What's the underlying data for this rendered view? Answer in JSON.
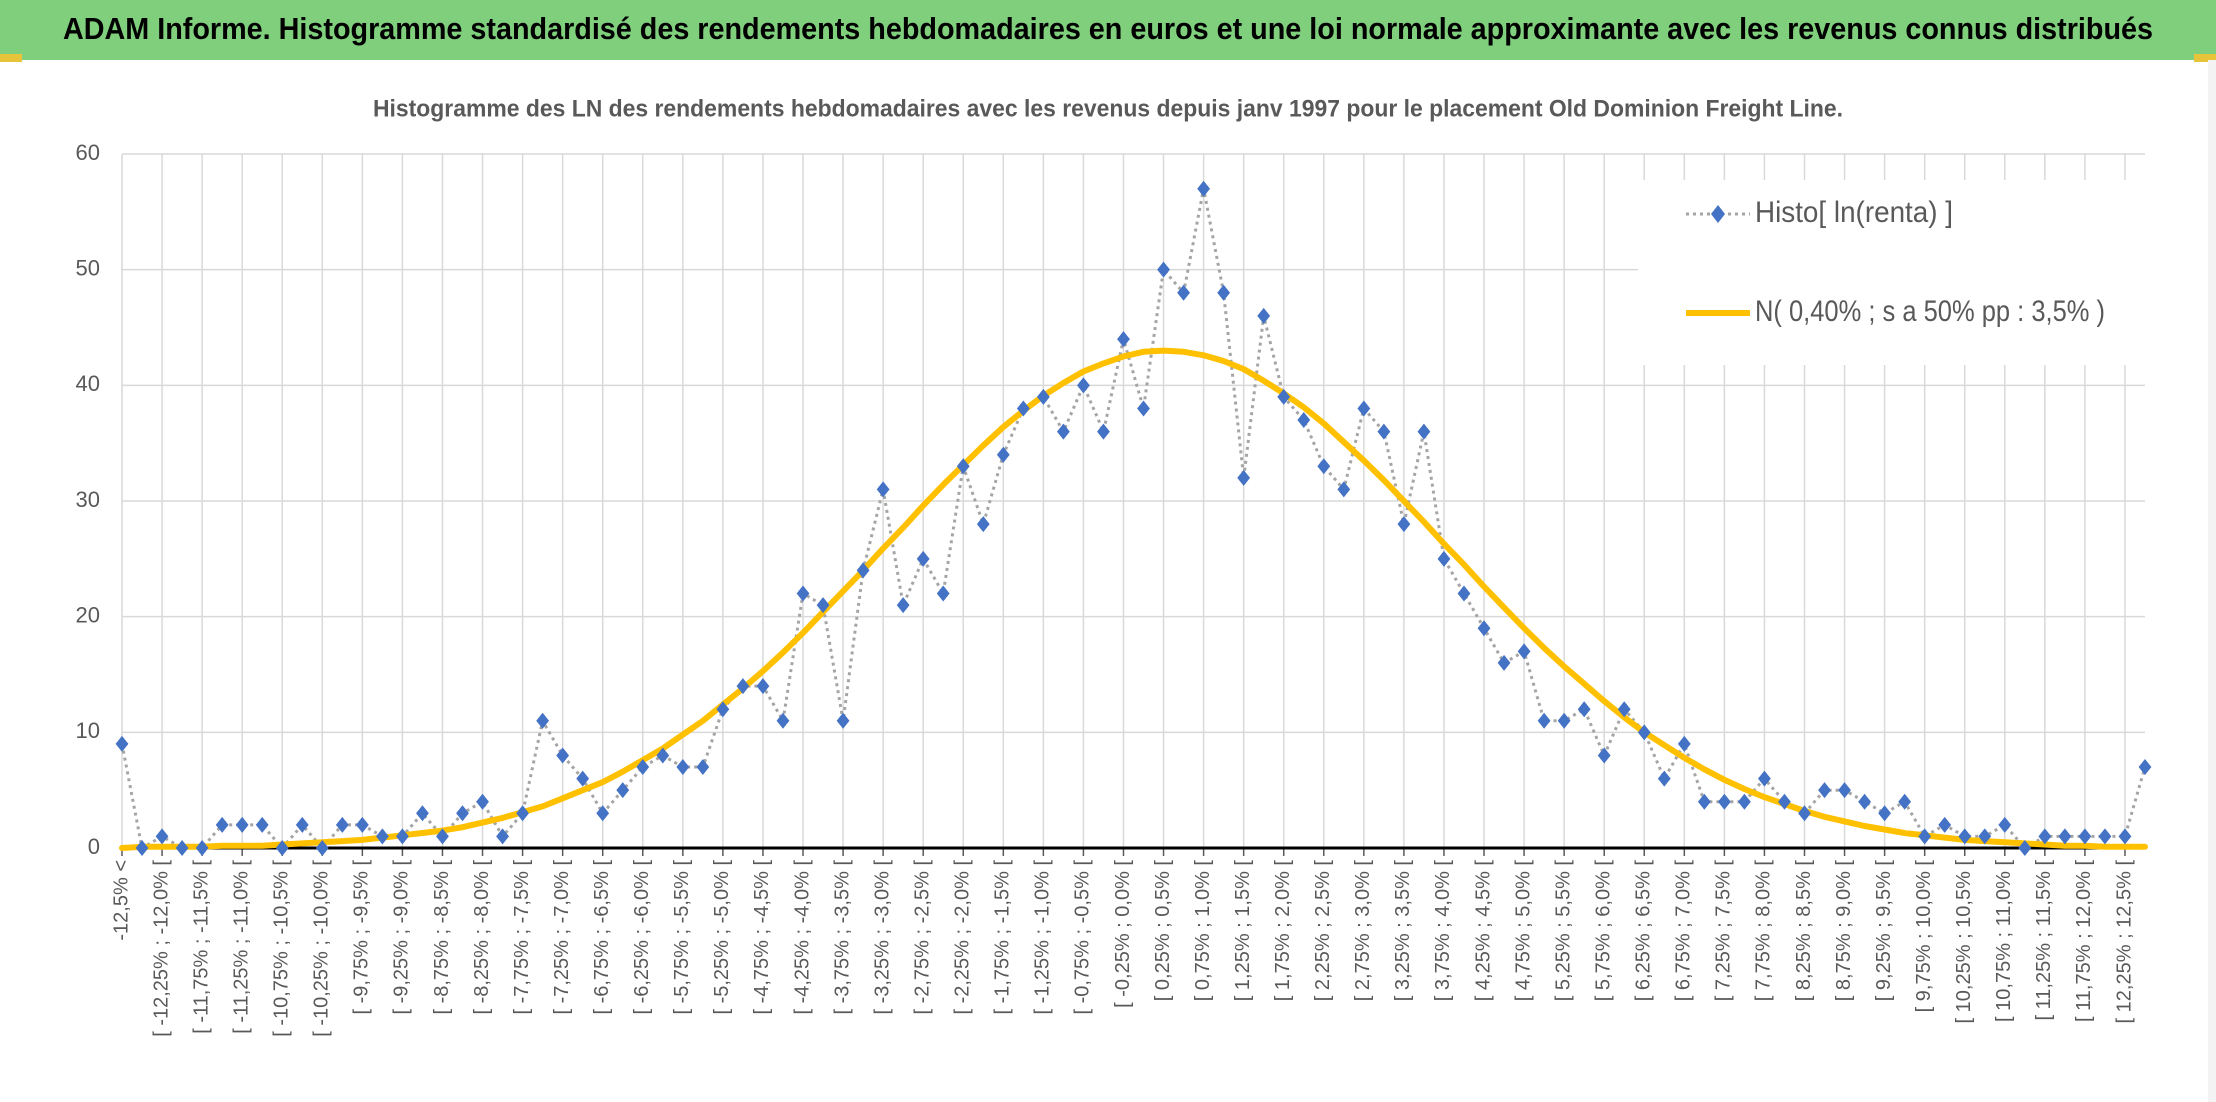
{
  "header": {
    "title": "ADAM Informe. Histogramme standardisé des rendements hebdomadaires en euros et une loi normale approximante avec les revenus connus distribués"
  },
  "chart_data": {
    "type": "line",
    "title": "Histogramme des LN des rendements hebdomadaires avec les revenus depuis janv 1997 pour le placement Old Dominion Freight Line.",
    "categories": [
      "-12,5% <",
      null,
      "[ -12,25% ; -12,0% [",
      null,
      "[ -11,75% ; -11,5% [",
      null,
      "[ -11,25% ; -11,0% [",
      null,
      "[ -10,75% ; -10,5% [",
      null,
      "[ -10,25% ; -10,0% [",
      null,
      "[ -9,75% ; -9,5% [",
      null,
      "[ -9,25% ; -9,0% [",
      null,
      "[ -8,75% ; -8,5% [",
      null,
      "[ -8,25% ; -8,0% [",
      null,
      "[ -7,75% ; -7,5% [",
      null,
      "[ -7,25% ; -7,0% [",
      null,
      "[ -6,75% ; -6,5% [",
      null,
      "[ -6,25% ; -6,0% [",
      null,
      "[ -5,75% ; -5,5% [",
      null,
      "[ -5,25% ; -5,0% [",
      null,
      "[ -4,75% ; -4,5% [",
      null,
      "[ -4,25% ; -4,0% [",
      null,
      "[ -3,75% ; -3,5% [",
      null,
      "[ -3,25% ; -3,0% [",
      null,
      "[ -2,75% ; -2,5% [",
      null,
      "[ -2,25% ; -2,0% [",
      null,
      "[ -1,75% ; -1,5% [",
      null,
      "[ -1,25% ; -1,0% [",
      null,
      "[ -0,75% ; -0,5% [",
      null,
      "[ -0,25% ; 0,0% [",
      null,
      "[ 0,25% ; 0,5% [",
      null,
      "[ 0,75% ; 1,0% [",
      null,
      "[ 1,25% ; 1,5% [",
      null,
      "[ 1,75% ; 2,0% [",
      null,
      "[ 2,25% ; 2,5% [",
      null,
      "[ 2,75% ; 3,0% [",
      null,
      "[ 3,25% ; 3,5% [",
      null,
      "[ 3,75% ; 4,0% [",
      null,
      "[ 4,25% ; 4,5% [",
      null,
      "[ 4,75% ; 5,0% [",
      null,
      "[ 5,25% ; 5,5% [",
      null,
      "[ 5,75% ; 6,0% [",
      null,
      "[ 6,25% ; 6,5% [",
      null,
      "[ 6,75% ; 7,0% [",
      null,
      "[ 7,25% ; 7,5% [",
      null,
      "[ 7,75% ; 8,0% [",
      null,
      "[ 8,25% ; 8,5% [",
      null,
      "[ 8,75% ; 9,0% [",
      null,
      "[ 9,25% ; 9,5% [",
      null,
      "[ 9,75% ; 10,0% [",
      null,
      "[ 10,25% ; 10,5% [",
      null,
      "[ 10,75% ; 11,0% [",
      null,
      "[ 11,25% ; 11,5% [",
      null,
      "[ 11,75% ; 12,0% [",
      null,
      "[ 12,25% ; 12,5% [",
      null
    ],
    "series": [
      {
        "name": "Histo[ ln(renta) ]",
        "color": "#4472c4",
        "line_color": "#a5a5a5",
        "values": [
          9,
          0,
          1,
          0,
          0,
          2,
          2,
          2,
          0,
          2,
          0,
          2,
          2,
          1,
          1,
          3,
          1,
          3,
          4,
          1,
          3,
          11,
          8,
          6,
          3,
          5,
          7,
          8,
          7,
          7,
          12,
          14,
          14,
          11,
          22,
          21,
          11,
          24,
          31,
          21,
          25,
          22,
          33,
          28,
          34,
          38,
          39,
          36,
          40,
          36,
          44,
          38,
          50,
          48,
          57,
          48,
          32,
          46,
          39,
          37,
          33,
          31,
          38,
          36,
          28,
          36,
          25,
          22,
          19,
          16,
          17,
          11,
          11,
          12,
          8,
          12,
          10,
          6,
          9,
          4,
          4,
          4,
          6,
          4,
          3,
          5,
          5,
          4,
          3,
          4,
          1,
          2,
          1,
          1,
          2,
          0,
          1,
          1,
          1,
          1,
          1,
          7
        ]
      },
      {
        "name": "N( 0,40% ; s a 50% pp : 3,5% )",
        "color": "#ffc000",
        "values": [
          0.0,
          0.1,
          0.1,
          0.1,
          0.1,
          0.2,
          0.2,
          0.2,
          0.3,
          0.4,
          0.5,
          0.6,
          0.7,
          0.9,
          1.1,
          1.3,
          1.5,
          1.8,
          2.2,
          2.6,
          3.1,
          3.6,
          4.3,
          5.0,
          5.7,
          6.6,
          7.6,
          8.6,
          9.8,
          11.0,
          12.4,
          13.8,
          15.3,
          16.9,
          18.6,
          20.4,
          22.2,
          24.0,
          25.9,
          27.7,
          29.6,
          31.4,
          33.1,
          34.8,
          36.4,
          37.8,
          39.1,
          40.2,
          41.2,
          41.9,
          42.5,
          42.9,
          43.0,
          42.9,
          42.6,
          42.1,
          41.4,
          40.4,
          39.3,
          38.1,
          36.7,
          35.1,
          33.5,
          31.8,
          30.0,
          28.2,
          26.3,
          24.5,
          22.6,
          20.8,
          19.0,
          17.3,
          15.7,
          14.2,
          12.7,
          11.3,
          10.0,
          8.9,
          7.8,
          6.8,
          5.9,
          5.1,
          4.4,
          3.8,
          3.2,
          2.7,
          2.3,
          1.9,
          1.6,
          1.3,
          1.1,
          0.9,
          0.7,
          0.6,
          0.5,
          0.4,
          0.3,
          0.2,
          0.2,
          0.1,
          0.1,
          0.1
        ]
      }
    ],
    "ylim": [
      0,
      60
    ],
    "yticks": [
      0,
      10,
      20,
      30,
      40,
      50,
      60
    ],
    "grid": true,
    "legend": "upper right"
  }
}
